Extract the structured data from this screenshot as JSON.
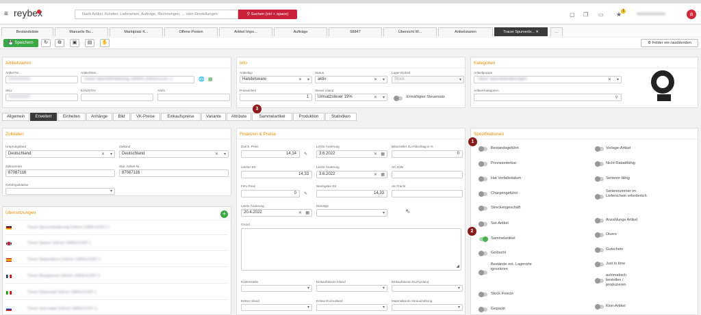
{
  "app": {
    "brand": "reybex",
    "search_placeholder": "Nach Artikel, Kunden, Lieferanten, Aufträge, Rechnungen, ... oder Einstellungen",
    "search_button": "Suchen (ctrl + space)",
    "notif_count": "1",
    "user_initial": "a",
    "user_name": "xxxxxxxxxxxxxx"
  },
  "tabs": [
    "Bestandsliste",
    "Manuelle Bu...",
    "Marktplatz K...",
    "Offene Posten",
    "Artikel Impo...",
    "Aufträge",
    "58847",
    "Übersicht W...",
    "Artikelstamm",
    "Tracer Spurverbr...",
    "..."
  ],
  "toolbar": {
    "save": "Speichern",
    "fields_toggle": "Felder ein-/ausblenden"
  },
  "artikelstamm": {
    "title": "Artikelstamm",
    "labels": {
      "nr": "Artikel-Nr.",
      "bez": "Artikel-Bez.",
      "sku": "SKU",
      "ean": "EAN/GTIN",
      "asin": "ASIN"
    },
    "values": {
      "nr": "XXXXXXXX",
      "bez": "Tracer Spurverbreiterung 2x6mm 108/5x112/57.1",
      "sku": "XXXXXXXX"
    }
  },
  "info": {
    "title": "Info",
    "labels": {
      "typ": "Artikeltyp",
      "status": "Status",
      "lager": "Lager-Einheit",
      "preis": "Preiseinheit",
      "steuer": "Steuer Inland",
      "ermaessigt": "Ermäßigter Steuersatz"
    },
    "values": {
      "typ": "Handelsware",
      "status": "aktiv",
      "lager": "Stück",
      "preis": "1",
      "steuer": "Umsatzsteuer 19%"
    }
  },
  "kategorien": {
    "title": "Kategorien",
    "labels": {
      "gruppe": "Artikelgruppe",
      "kat": "Artikel-Kategorien"
    },
    "values": {
      "gruppe": "Tracer Spurverbreiterungen"
    }
  },
  "subtabs": [
    "Allgemein",
    "Erweitert",
    "Einheiten",
    "Anhänge",
    "Bild",
    "VK-Preise",
    "Einkaufspreise",
    "Variante",
    "Attribute",
    "Sammelartikel",
    "Produktion",
    "Statistiken"
  ],
  "zolldaten": {
    "title": "Zolldaten",
    "labels": {
      "ursprung": "Ursprungsland",
      "ziel": "Zielland",
      "zollnr": "Zollnummer",
      "stat": "Stat. Artikel-Nr.",
      "gefahr": "Gefahrgutklasse"
    },
    "values": {
      "ursprung": "Deutschland",
      "ziel": "Deutschland",
      "zollnr": "87087116",
      "stat": "87087116"
    }
  },
  "uebersetzungen": {
    "title": "Übersetzungen",
    "rows": [
      "Tracer Spurverbreiterung 2x6mm 108/5x112/57.1",
      "Tracer Spacer 2x6mm 108/5x112/57.1",
      "Tracer Separadores 2x6mm 108/5x112/57.1",
      "Tracer Élargisseurs 2x6mm 108/5x112/57.1",
      "Tracer Distanziali 2x6mm 108/5x112/57.1",
      "Tracer проставки 2x6mm 108/5x112/57.1"
    ]
  },
  "finanzen": {
    "title": "Finanzen & Preise",
    "labels": {
      "durch": "Durch.-Preis",
      "letzte1": "Letzte Änderung",
      "bilanz": "Bilanzieller Zu-/Abschlag in %",
      "lek": "Letzter-EK",
      "letzte2": "Letzte Änderung",
      "zoelle": "AK Zölle",
      "fifo": "FiFo Preis",
      "niedrig": "Niedrigster EK",
      "fracht": "AK Fracht",
      "letzte3": "Letzte Änderung",
      "dienst": "Dienstyp",
      "grund": "Grund",
      "kst": "Kostenstelle",
      "ek_inland": "Einkaufskonto Inland",
      "ek_eu": "Einkaufskonto EU/Ausland",
      "erloes_in": "Erlöse Inland",
      "erloes_eu": "Erlöse EU/Ausland",
      "material": "Materialkonto Vorauszahlung"
    },
    "values": {
      "durch": "14,14",
      "letzte1": "3.6.2022",
      "bilanz": "0",
      "lek": "14,33",
      "letzte2": "3.6.2022",
      "fifo": "0",
      "niedrig": "14,33",
      "letzte3": "20.4.2022"
    }
  },
  "spezifikationen": {
    "title": "Spezifikationen",
    "left": [
      "Bestandsgeführt",
      "Provisionierbar",
      "Hat Verfallsdatum",
      "Chargengeführt",
      "Streckengeschäft",
      "Set-Artikel",
      "Sammelartikel",
      "Gelöscht",
      "Bestände ext. Lagerorte ignorieren",
      "Stock Freeze",
      "Gepackt"
    ],
    "right": [
      "Vorlage-Artikel",
      "Nicht Rabattfähig",
      "Seriennr fähig",
      "Seriennummer im Lieferschein erforderlich",
      "Anzahlungs Artikel",
      "Divers",
      "Gutschein",
      "Just in time",
      "automatisch bestellen / produzieren",
      "Klon-Artikel"
    ]
  },
  "badges": [
    "1",
    "2",
    "3"
  ],
  "colors": {
    "accent": "#f28c00",
    "save": "#3aa844",
    "brand_red": "#d12a3a",
    "search_btn": "#c9213c",
    "toggle_on": "#4caf50"
  }
}
